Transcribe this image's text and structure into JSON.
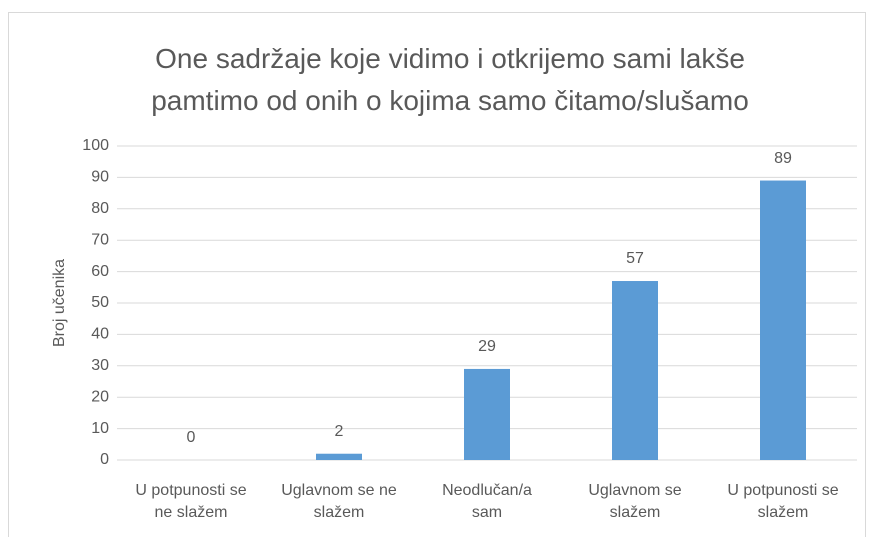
{
  "chart_data": {
    "type": "bar",
    "title": "One sadržaje koje vidimo i otkrijemo sami lakše pamtimo od onih o kojima samo čitamo/slušamo",
    "y_label": "Broj učenika",
    "categories": [
      "U potpunosti se ne slažem",
      "Uglavnom se ne slažem",
      "Neodlučan/a sam",
      "Uglavnom se slažem",
      "U potpunosti se slažem"
    ],
    "values": [
      0,
      2,
      29,
      57,
      89
    ],
    "color": "#5b9bd5",
    "ylim": [
      0,
      100
    ],
    "yticks": [
      0,
      10,
      20,
      30,
      40,
      50,
      60,
      70,
      80,
      90,
      100
    ],
    "grid": true
  }
}
